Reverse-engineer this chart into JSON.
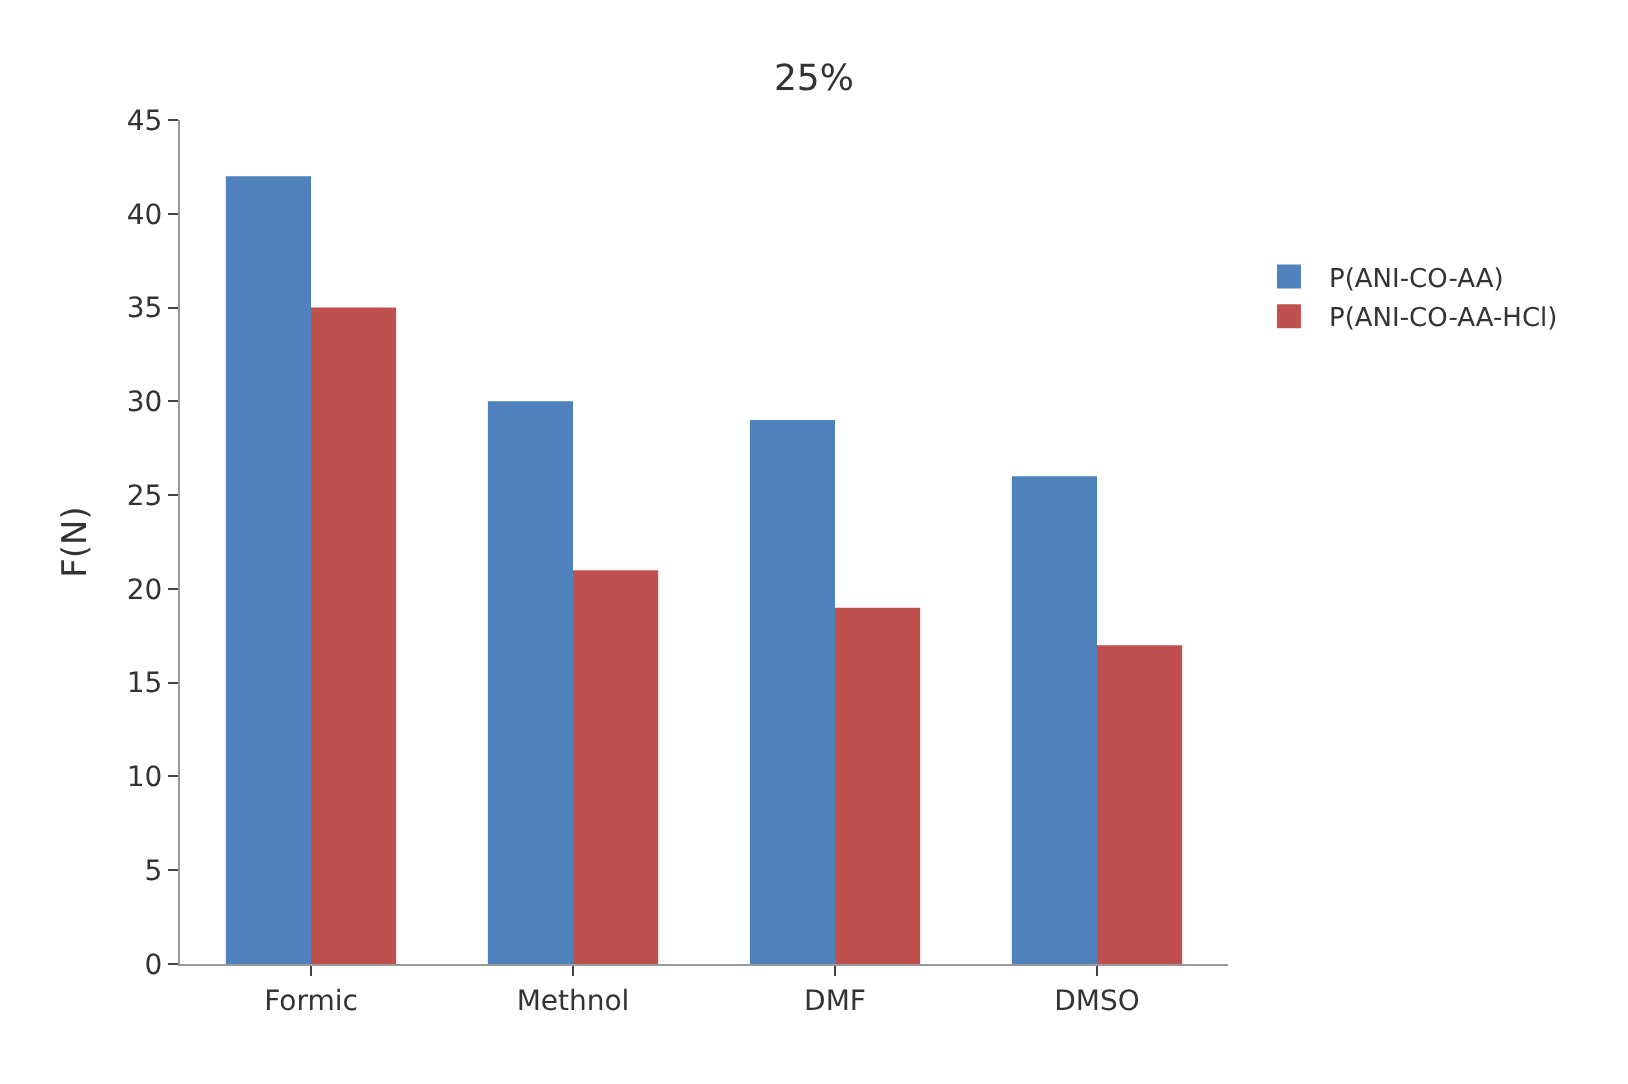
{
  "chart_data": {
    "type": "bar",
    "title": "25%",
    "ylabel": "F(N)",
    "categories": [
      "Formic",
      "Methnol",
      "DMF",
      "DMSO"
    ],
    "series": [
      {
        "name": "P(ANI-CO-AA)",
        "color": "#4f81bd",
        "values": [
          42,
          30,
          29,
          26
        ]
      },
      {
        "name": "P(ANI-CO-AA-HCl)",
        "color": "#c0504d",
        "values": [
          35,
          21,
          19,
          17
        ]
      }
    ],
    "ylim": [
      0,
      45
    ],
    "yticks": [
      0,
      5,
      10,
      15,
      20,
      25,
      30,
      35,
      40,
      45
    ],
    "legend": "right"
  }
}
